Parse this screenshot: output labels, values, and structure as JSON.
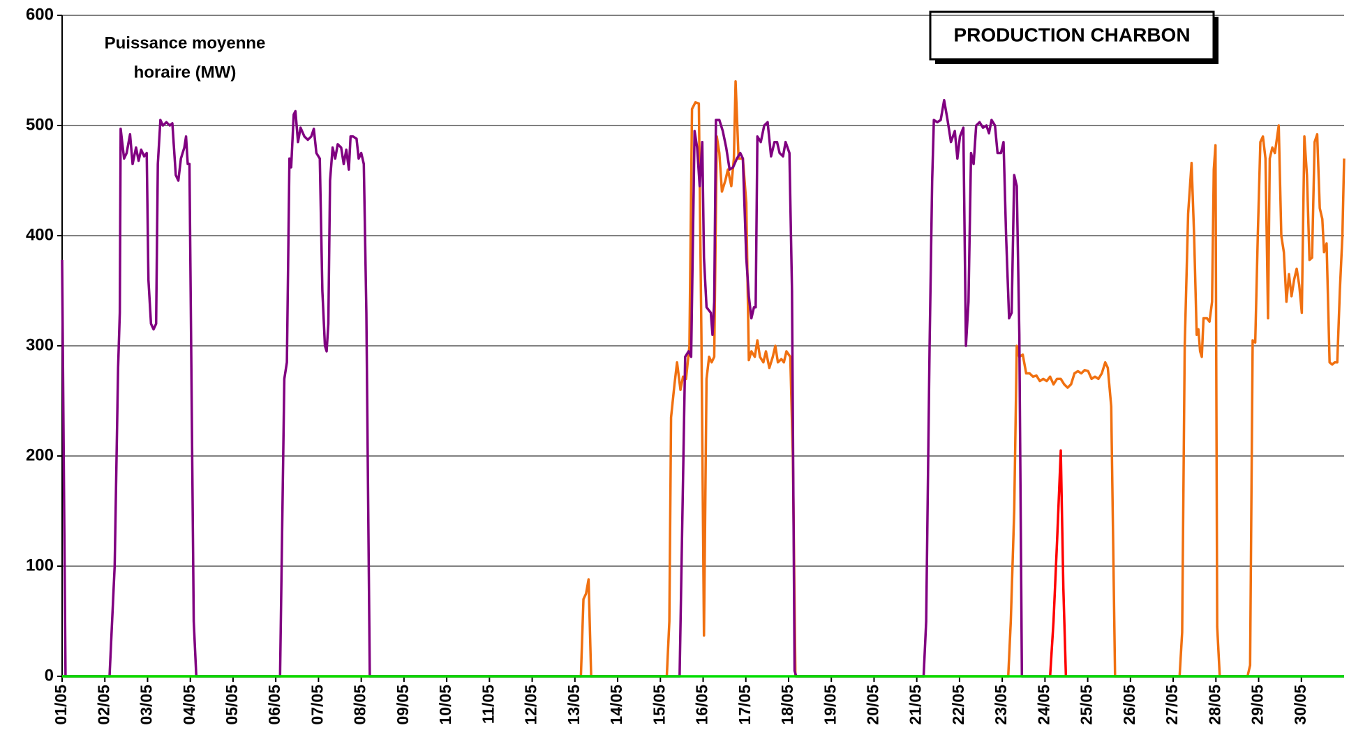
{
  "chart_data": {
    "type": "line",
    "title": "PRODUCTION CHARBON",
    "y_label": [
      "Puissance moyenne",
      "horaire (MW)"
    ],
    "xlim": [
      1,
      31
    ],
    "xticks": [
      {
        "value": 1,
        "label": "01/05"
      },
      {
        "value": 2,
        "label": "02/05"
      },
      {
        "value": 3,
        "label": "03/05"
      },
      {
        "value": 4,
        "label": "04/05"
      },
      {
        "value": 5,
        "label": "05/05"
      },
      {
        "value": 6,
        "label": "06/05"
      },
      {
        "value": 7,
        "label": "07/05"
      },
      {
        "value": 8,
        "label": "08/05"
      },
      {
        "value": 9,
        "label": "09/05"
      },
      {
        "value": 10,
        "label": "10/05"
      },
      {
        "value": 11,
        "label": "11/05"
      },
      {
        "value": 12,
        "label": "12/05"
      },
      {
        "value": 13,
        "label": "13/05"
      },
      {
        "value": 14,
        "label": "14/05"
      },
      {
        "value": 15,
        "label": "15/05"
      },
      {
        "value": 16,
        "label": "16/05"
      },
      {
        "value": 17,
        "label": "17/05"
      },
      {
        "value": 18,
        "label": "18/05"
      },
      {
        "value": 19,
        "label": "19/05"
      },
      {
        "value": 20,
        "label": "20/05"
      },
      {
        "value": 21,
        "label": "21/05"
      },
      {
        "value": 22,
        "label": "22/05"
      },
      {
        "value": 23,
        "label": "23/05"
      },
      {
        "value": 24,
        "label": "24/05"
      },
      {
        "value": 25,
        "label": "25/05"
      },
      {
        "value": 26,
        "label": "26/05"
      },
      {
        "value": 27,
        "label": "27/05"
      },
      {
        "value": 28,
        "label": "28/05"
      },
      {
        "value": 29,
        "label": "29/05"
      },
      {
        "value": 30,
        "label": "30/05"
      }
    ],
    "ylim": [
      0,
      600
    ],
    "yticks": [
      0,
      100,
      200,
      300,
      400,
      500,
      600
    ],
    "grid": true,
    "series": [
      {
        "color": "#f07010",
        "x": [
          1.0,
          13.14,
          13.2,
          13.26,
          13.32,
          13.38,
          15.15,
          15.21,
          15.25,
          15.33,
          15.39,
          15.47,
          15.53,
          15.6,
          15.68,
          15.74,
          15.82,
          15.9,
          15.96,
          16.02,
          16.08,
          16.14,
          16.2,
          16.26,
          16.32,
          16.38,
          16.44,
          16.52,
          16.58,
          16.66,
          16.72,
          16.76,
          16.83,
          16.93,
          17.01,
          17.07,
          17.13,
          17.21,
          17.27,
          17.33,
          17.41,
          17.47,
          17.55,
          17.63,
          17.69,
          17.75,
          17.83,
          17.89,
          17.95,
          18.04,
          18.1,
          18.16,
          23.14,
          23.2,
          23.28,
          23.34,
          23.4,
          23.48,
          23.56,
          23.64,
          23.72,
          23.8,
          23.88,
          23.96,
          24.04,
          24.12,
          24.2,
          24.28,
          24.37,
          24.45,
          24.53,
          24.61,
          24.69,
          24.77,
          24.85,
          24.93,
          25.01,
          25.09,
          25.17,
          25.25,
          25.33,
          25.41,
          25.47,
          25.55,
          25.64,
          27.15,
          27.21,
          27.27,
          27.35,
          27.43,
          27.49,
          27.55,
          27.59,
          27.63,
          27.67,
          27.71,
          27.79,
          27.85,
          27.91,
          27.95,
          27.99,
          28.03,
          28.09,
          28.74,
          28.8,
          28.86,
          28.92,
          28.98,
          29.04,
          29.1,
          29.16,
          29.22,
          29.26,
          29.32,
          29.38,
          29.47,
          29.53,
          29.59,
          29.65,
          29.71,
          29.77,
          29.83,
          29.89,
          29.95,
          30.01,
          30.07,
          30.13,
          30.19,
          30.25,
          30.31,
          30.37,
          30.43,
          30.49,
          30.53,
          30.59,
          30.66,
          30.72,
          30.78,
          30.84,
          30.9,
          30.96,
          31.0
        ],
        "values": [
          0,
          0,
          70,
          75,
          88,
          0,
          0,
          50,
          235,
          265,
          285,
          260,
          272,
          270,
          300,
          515,
          521,
          520,
          310,
          37,
          270,
          290,
          285,
          290,
          490,
          475,
          440,
          450,
          460,
          445,
          470,
          540,
          470,
          470,
          430,
          287,
          295,
          290,
          305,
          290,
          285,
          295,
          280,
          290,
          300,
          285,
          288,
          285,
          295,
          290,
          200,
          0,
          0,
          50,
          150,
          300,
          290,
          292,
          275,
          275,
          272,
          273,
          268,
          270,
          268,
          272,
          265,
          270,
          270,
          265,
          262,
          265,
          275,
          277,
          275,
          278,
          277,
          270,
          272,
          270,
          275,
          285,
          280,
          245,
          0,
          0,
          40,
          300,
          420,
          466,
          400,
          310,
          315,
          295,
          290,
          325,
          325,
          322,
          340,
          460,
          482,
          45,
          0,
          0,
          10,
          305,
          303,
          400,
          485,
          490,
          470,
          325,
          470,
          480,
          475,
          500,
          400,
          385,
          340,
          365,
          345,
          360,
          370,
          355,
          330,
          490,
          455,
          378,
          380,
          485,
          492,
          425,
          415,
          385,
          393,
          285,
          283,
          285,
          285,
          350,
          400,
          470
        ]
      },
      {
        "color": "#800080",
        "x": [
          1.0,
          1.08,
          2.11,
          2.23,
          2.31,
          2.35,
          2.37,
          2.45,
          2.51,
          2.59,
          2.65,
          2.73,
          2.79,
          2.85,
          2.92,
          2.98,
          3.02,
          3.08,
          3.14,
          3.2,
          3.24,
          3.3,
          3.36,
          3.44,
          3.52,
          3.58,
          3.66,
          3.72,
          3.78,
          3.86,
          3.9,
          3.94,
          3.98,
          4.02,
          4.08,
          4.14,
          6.1,
          6.2,
          6.26,
          6.32,
          6.36,
          6.42,
          6.46,
          6.52,
          6.58,
          6.67,
          6.75,
          6.83,
          6.89,
          6.95,
          7.03,
          7.09,
          7.15,
          7.19,
          7.23,
          7.27,
          7.33,
          7.39,
          7.45,
          7.53,
          7.59,
          7.65,
          7.71,
          7.75,
          7.81,
          7.89,
          7.94,
          8.0,
          8.06,
          8.12,
          8.2,
          15.45,
          15.58,
          15.66,
          15.72,
          15.8,
          15.86,
          15.92,
          15.98,
          16.02,
          16.08,
          16.18,
          16.22,
          16.26,
          16.3,
          16.38,
          16.46,
          16.54,
          16.62,
          16.7,
          16.79,
          16.87,
          16.93,
          17.01,
          17.07,
          17.13,
          17.19,
          17.23,
          17.27,
          17.35,
          17.43,
          17.51,
          17.59,
          17.67,
          17.73,
          17.79,
          17.87,
          17.93,
          18.02,
          18.08,
          18.14,
          18.18,
          21.16,
          21.22,
          21.3,
          21.36,
          21.4,
          21.48,
          21.56,
          21.64,
          21.72,
          21.8,
          21.89,
          21.95,
          22.01,
          22.09,
          22.15,
          22.21,
          22.27,
          22.33,
          22.39,
          22.47,
          22.55,
          22.63,
          22.69,
          22.75,
          22.83,
          22.89,
          22.97,
          23.03,
          23.09,
          23.16,
          23.22,
          23.28,
          23.34,
          23.4,
          23.46,
          31.0
        ],
        "values": [
          378,
          0,
          0,
          100,
          280,
          330,
          497,
          470,
          475,
          492,
          465,
          480,
          468,
          478,
          472,
          475,
          360,
          320,
          315,
          320,
          465,
          505,
          500,
          503,
          500,
          502,
          455,
          450,
          470,
          480,
          490,
          465,
          465,
          300,
          50,
          0,
          0,
          270,
          285,
          470,
          462,
          510,
          513,
          485,
          498,
          490,
          487,
          490,
          497,
          475,
          470,
          350,
          300,
          295,
          320,
          450,
          480,
          470,
          483,
          480,
          465,
          478,
          460,
          490,
          490,
          488,
          470,
          475,
          465,
          330,
          0,
          0,
          290,
          295,
          290,
          495,
          480,
          445,
          485,
          380,
          335,
          330,
          310,
          340,
          505,
          505,
          495,
          480,
          460,
          462,
          470,
          475,
          470,
          380,
          345,
          325,
          335,
          335,
          490,
          485,
          500,
          503,
          472,
          485,
          485,
          475,
          472,
          485,
          475,
          350,
          5,
          0,
          0,
          50,
          300,
          450,
          505,
          503,
          505,
          523,
          505,
          485,
          495,
          470,
          490,
          498,
          300,
          340,
          475,
          465,
          500,
          503,
          498,
          500,
          493,
          505,
          500,
          475,
          475,
          485,
          400,
          325,
          330,
          455,
          445,
          310,
          0,
          0
        ]
      },
      {
        "color": "#ff0000",
        "x": [
          24.12,
          24.2,
          24.28,
          24.37,
          24.43,
          24.49
        ],
        "values": [
          0,
          50,
          120,
          205,
          80,
          0
        ]
      },
      {
        "color": "#00dd00",
        "x": [
          1,
          31
        ],
        "values": [
          0,
          0
        ]
      }
    ]
  }
}
